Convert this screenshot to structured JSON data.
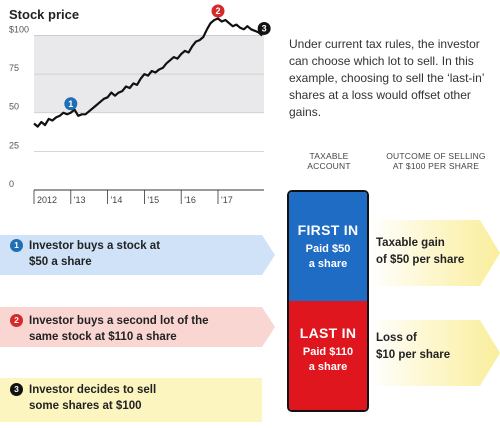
{
  "chart_data": {
    "type": "line",
    "title": "Stock price",
    "yticks": [
      0,
      25,
      50,
      75,
      100
    ],
    "ytick_labels": [
      "0",
      "25",
      "50",
      "75",
      "$100"
    ],
    "ylim": [
      0,
      110
    ],
    "xlim": [
      2012,
      2018.25
    ],
    "xticks": [
      2012,
      2013,
      2014,
      2015,
      2016,
      2017
    ],
    "xtick_labels": [
      "2012",
      "'13",
      "'14",
      "'15",
      "'16",
      "'17"
    ],
    "shaded_band": [
      50,
      100
    ],
    "grid": "horizontal",
    "series": [
      {
        "x": [
          2012.0,
          2012.1,
          2012.2,
          2012.3,
          2012.4,
          2012.5,
          2012.6,
          2012.7,
          2012.8,
          2012.9,
          2013.0,
          2013.1,
          2013.2,
          2013.3,
          2013.4,
          2013.5,
          2013.6,
          2013.7,
          2013.8,
          2013.9,
          2014.0,
          2014.1,
          2014.2,
          2014.3,
          2014.4,
          2014.5,
          2014.6,
          2014.7,
          2014.8,
          2014.9,
          2015.0,
          2015.1,
          2015.2,
          2015.3,
          2015.4,
          2015.5,
          2015.6,
          2015.7,
          2015.8,
          2015.9,
          2016.0,
          2016.1,
          2016.2,
          2016.3,
          2016.4,
          2016.5,
          2016.6,
          2016.7,
          2016.8,
          2016.9,
          2017.0,
          2017.1,
          2017.2,
          2017.3,
          2017.4,
          2017.5,
          2017.6,
          2017.7,
          2017.8,
          2017.9,
          2018.0,
          2018.1,
          2018.2
        ],
        "y": [
          43,
          41,
          44,
          42,
          46,
          45,
          47,
          48,
          50,
          49,
          50,
          52,
          48,
          49,
          49,
          51,
          53,
          55,
          57,
          59,
          60,
          63,
          61,
          63,
          64,
          67,
          66,
          69,
          68,
          72,
          75,
          74,
          77,
          76,
          78,
          79,
          82,
          84,
          86,
          85,
          88,
          90,
          89,
          93,
          96,
          97,
          99,
          104,
          108,
          110,
          111,
          109,
          110,
          108,
          106,
          107,
          105,
          104,
          106,
          104,
          103,
          102,
          100
        ]
      }
    ],
    "markers": [
      {
        "label": "1",
        "x": 2013.0,
        "y": 50,
        "color": "#1f6fb5"
      },
      {
        "label": "2",
        "x": 2017.0,
        "y": 110,
        "color": "#d62a2a"
      },
      {
        "label": "3",
        "x": 2018.2,
        "y": 100,
        "color": "#111111"
      }
    ]
  },
  "explanation": "Under current tax rules, the investor can choose which lot to sell. In this example, choosing to sell the ‘last-in’ shares at a loss would offset other gains.",
  "columns": {
    "taxable": [
      "TAXABLE",
      "ACCOUNT"
    ],
    "outcome": [
      "OUTCOME OF SELLING",
      "AT $100 PER SHARE"
    ]
  },
  "steps": [
    {
      "num": "1",
      "lines": [
        "Investor buys a stock at",
        "$50 a share"
      ]
    },
    {
      "num": "2",
      "lines": [
        "Investor buys a second lot of the",
        "same stock at $110 a share"
      ]
    },
    {
      "num": "3",
      "lines": [
        "Investor decides to sell",
        "some shares at $100"
      ]
    }
  ],
  "stack": {
    "first": {
      "head": "FIRST IN",
      "lines": [
        "Paid $50",
        "a share"
      ]
    },
    "last": {
      "head": "LAST IN",
      "lines": [
        "Paid $110",
        "a share"
      ]
    }
  },
  "outcomes": [
    {
      "lines": [
        "Taxable gain",
        "of $50 per share"
      ]
    },
    {
      "lines": [
        "Loss of",
        "$10 per share"
      ]
    }
  ],
  "colors": {
    "blue": "#1f6fb5",
    "red": "#d62a2a",
    "black": "#111111",
    "first_in": "#1f6cc4",
    "last_in": "#e0161e"
  }
}
